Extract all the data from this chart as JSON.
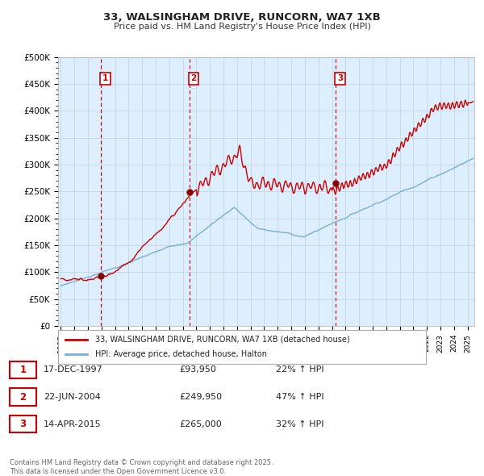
{
  "title": "33, WALSINGHAM DRIVE, RUNCORN, WA7 1XB",
  "subtitle": "Price paid vs. HM Land Registry's House Price Index (HPI)",
  "ylim": [
    0,
    500000
  ],
  "xlim_start": 1994.8,
  "xlim_end": 2025.5,
  "sale_dates": [
    1997.96,
    2004.47,
    2015.28
  ],
  "sale_prices": [
    93950,
    249950,
    265000
  ],
  "sale_labels": [
    "1",
    "2",
    "3"
  ],
  "legend_line1": "33, WALSINGHAM DRIVE, RUNCORN, WA7 1XB (detached house)",
  "legend_line2": "HPI: Average price, detached house, Halton",
  "table_rows": [
    [
      "1",
      "17-DEC-1997",
      "£93,950",
      "22% ↑ HPI"
    ],
    [
      "2",
      "22-JUN-2004",
      "£249,950",
      "47% ↑ HPI"
    ],
    [
      "3",
      "14-APR-2015",
      "£265,000",
      "32% ↑ HPI"
    ]
  ],
  "footnote": "Contains HM Land Registry data © Crown copyright and database right 2025.\nThis data is licensed under the Open Government Licence v3.0.",
  "line_color_sale": "#cc0000",
  "line_color_hpi": "#7aaed6",
  "vline_color": "#cc0000",
  "grid_color": "#c8d8e8",
  "bg_color": "#ddeeff",
  "background_color": "#ffffff"
}
